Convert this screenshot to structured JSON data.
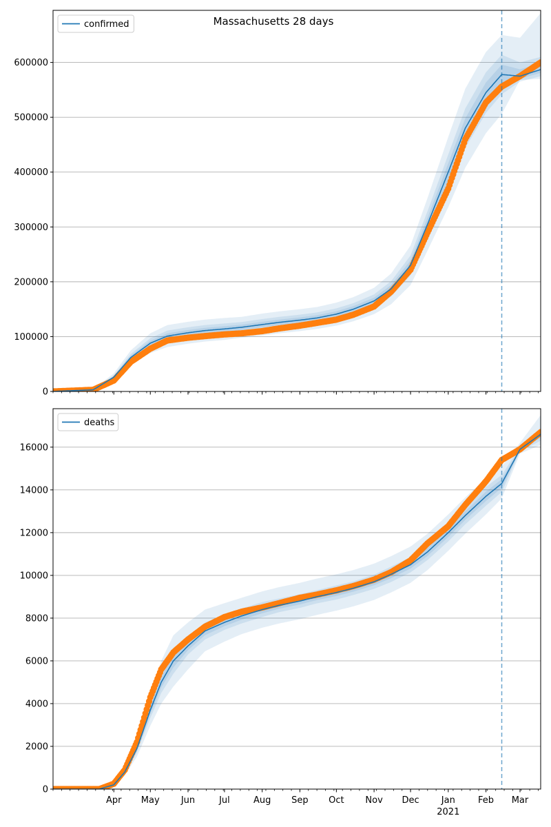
{
  "chart_data": [
    {
      "type": "line",
      "title": "Massachusetts 28 days",
      "legend": {
        "label": "confirmed",
        "placement": "top-left"
      },
      "xlim": [
        "2020-02-11",
        "2021-03-18"
      ],
      "ylim": [
        0,
        695000
      ],
      "yticks": [
        0,
        100000,
        200000,
        300000,
        400000,
        500000,
        600000
      ],
      "grid": "horizontal",
      "forecast_start": "2021-02-14",
      "x": [
        "2020-02-11",
        "2020-03-15",
        "2020-04-01",
        "2020-04-15",
        "2020-05-01",
        "2020-05-15",
        "2020-06-01",
        "2020-06-15",
        "2020-07-01",
        "2020-07-15",
        "2020-08-01",
        "2020-08-15",
        "2020-09-01",
        "2020-09-15",
        "2020-10-01",
        "2020-10-15",
        "2020-11-01",
        "2020-11-15",
        "2020-12-01",
        "2020-12-15",
        "2021-01-01",
        "2021-01-15",
        "2021-02-01",
        "2021-02-14",
        "2021-03-01",
        "2021-03-18"
      ],
      "series": [
        {
          "name": "confirmed",
          "role": "model-mean",
          "values": [
            0,
            3000,
            26000,
            62000,
            88000,
            101000,
            107000,
            111000,
            114000,
            117000,
            122000,
            126000,
            130000,
            134000,
            141000,
            150000,
            165000,
            187000,
            230000,
            305000,
            400000,
            480000,
            545000,
            578000,
            575000,
            587000
          ],
          "bands": [
            {
              "low": [
                0,
                2500,
                22500,
                55500,
                79000,
                91000,
                97000,
                101000,
                104000,
                107500,
                112000,
                116000,
                120000,
                124000,
                130500,
                139000,
                153000,
                173000,
                212000,
                281000,
                368000,
                444000,
                508000,
                542000,
                565000,
                575000
              ],
              "high": [
                0,
                3500,
                29500,
                68500,
                97000,
                111000,
                117000,
                121000,
                124000,
                126500,
                132000,
                136000,
                140000,
                144000,
                151500,
                161000,
                177000,
                201000,
                248000,
                329000,
                432000,
                516000,
                582000,
                614000,
                600000,
                610000
              ]
            },
            {
              "low": [
                0,
                2000,
                19000,
                49000,
                70000,
                81000,
                87000,
                91000,
                94000,
                98000,
                102000,
                106000,
                110000,
                114000,
                120000,
                128000,
                141000,
                159000,
                194000,
                257000,
                336000,
                408000,
                471000,
                506000,
                568000,
                570000
              ],
              "high": [
                0,
                4000,
                33000,
                75000,
                106000,
                121000,
                127000,
                131000,
                134000,
                136000,
                142000,
                146000,
                150000,
                154000,
                162000,
                172000,
                189000,
                215000,
                266000,
                353000,
                464000,
                552000,
                619000,
                650000,
                645000,
                690000
              ]
            }
          ]
        },
        {
          "name": "observed",
          "values": [
            0,
            3000,
            20000,
            54000,
            78000,
            93000,
            98000,
            101000,
            104000,
            106000,
            110000,
            115000,
            120000,
            125000,
            131000,
            140000,
            155000,
            182000,
            222000,
            290000,
            370000,
            460000,
            527000,
            556000,
            575000,
            600000
          ]
        }
      ]
    },
    {
      "type": "line",
      "legend": {
        "label": "deaths",
        "placement": "top-left"
      },
      "xlim": [
        "2020-02-11",
        "2021-03-18"
      ],
      "ylim": [
        0,
        17800
      ],
      "yticks": [
        0,
        2000,
        4000,
        6000,
        8000,
        10000,
        12000,
        14000,
        16000
      ],
      "grid": "horizontal",
      "forecast_start": "2021-02-14",
      "x": [
        "2020-02-11",
        "2020-03-20",
        "2020-04-01",
        "2020-04-10",
        "2020-04-20",
        "2020-05-01",
        "2020-05-10",
        "2020-05-20",
        "2020-06-01",
        "2020-06-15",
        "2020-07-01",
        "2020-07-15",
        "2020-08-01",
        "2020-08-15",
        "2020-09-01",
        "2020-09-15",
        "2020-10-01",
        "2020-10-15",
        "2020-11-01",
        "2020-11-15",
        "2020-12-01",
        "2020-12-15",
        "2021-01-01",
        "2021-01-15",
        "2021-02-01",
        "2021-02-14",
        "2021-03-01",
        "2021-03-18"
      ],
      "series": [
        {
          "name": "deaths",
          "role": "model-mean",
          "values": [
            0,
            0,
            200,
            800,
            1900,
            3700,
            5000,
            6000,
            6700,
            7400,
            7800,
            8100,
            8400,
            8600,
            8800,
            9000,
            9200,
            9400,
            9700,
            10050,
            10500,
            11100,
            12000,
            12800,
            13700,
            14300,
            15900,
            16600
          ],
          "bands": [
            {
              "low": [
                0,
                0,
                180,
                720,
                1710,
                3330,
                4500,
                5400,
                6300,
                7000,
                7450,
                7750,
                8050,
                8280,
                8480,
                8690,
                8870,
                9080,
                9370,
                9690,
                10140,
                10720,
                11590,
                12390,
                13260,
                13900,
                15800,
                16300
              ],
              "high": [
                0,
                0,
                220,
                880,
                2090,
                4070,
                5500,
                6600,
                7100,
                7800,
                8150,
                8450,
                8750,
                8920,
                9120,
                9310,
                9530,
                9720,
                10030,
                10410,
                10860,
                11480,
                12410,
                13210,
                14140,
                14700,
                16000,
                16900
              ]
            },
            {
              "low": [
                0,
                0,
                160,
                640,
                1520,
                2960,
                4000,
                4800,
                5600,
                6450,
                6900,
                7250,
                7550,
                7750,
                7950,
                8150,
                8350,
                8550,
                8850,
                9200,
                9650,
                10250,
                11150,
                11950,
                12850,
                13600,
                15700,
                16100
              ],
              "high": [
                0,
                0,
                240,
                960,
                2280,
                4440,
                6000,
                7200,
                7800,
                8400,
                8700,
                8950,
                9250,
                9450,
                9650,
                9850,
                10050,
                10250,
                10550,
                10900,
                11350,
                11950,
                12850,
                13650,
                14550,
                15100,
                16200,
                17500
              ]
            }
          ]
        },
        {
          "name": "observed",
          "values": [
            0,
            0,
            250,
            900,
            2200,
            4300,
            5600,
            6400,
            7000,
            7600,
            8050,
            8300,
            8500,
            8700,
            8950,
            9100,
            9300,
            9500,
            9800,
            10150,
            10700,
            11500,
            12300,
            13300,
            14400,
            15400,
            15900,
            16700
          ]
        }
      ]
    }
  ],
  "x_axis": {
    "month_labels": [
      "Apr",
      "May",
      "Jun",
      "Jul",
      "Aug",
      "Sep",
      "Oct",
      "Nov",
      "Dec",
      "Jan",
      "Feb",
      "Mar"
    ],
    "month_dates": [
      "2020-04-01",
      "2020-05-01",
      "2020-06-01",
      "2020-07-01",
      "2020-08-01",
      "2020-09-01",
      "2020-10-01",
      "2020-11-01",
      "2020-12-01",
      "2021-01-01",
      "2021-02-01",
      "2021-03-01"
    ],
    "year_label": "2021",
    "year_label_date": "2021-01-01"
  },
  "colors": {
    "line": "#1f77b4",
    "band": "#1f77b4",
    "observed": "#ff7f0e",
    "grid": "#b0b0b0",
    "forecast_line": "#1f77b4"
  }
}
